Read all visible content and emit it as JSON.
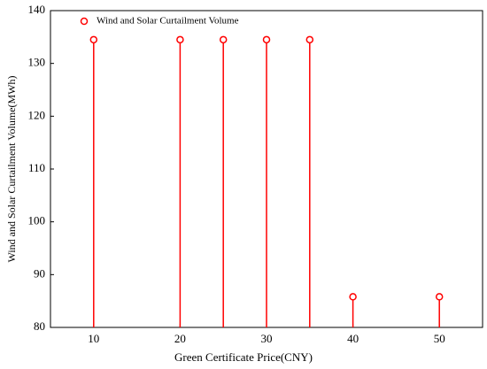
{
  "chart_data": {
    "type": "stem",
    "x": [
      10,
      20,
      25,
      30,
      35,
      40,
      50
    ],
    "series": [
      {
        "name": "Wind and Solar Curtailment Volume",
        "color": "#ff0000",
        "values": [
          134.5,
          134.5,
          134.5,
          134.5,
          134.5,
          85.8,
          85.8
        ]
      }
    ],
    "xlabel": "Green Certificate Price(CNY)",
    "ylabel": "Wind and Solar Curtailment Volume(MWh)",
    "xlim": [
      5,
      55
    ],
    "xticks": [
      10,
      20,
      30,
      40,
      50
    ],
    "ylim": [
      80,
      140
    ],
    "yticks": [
      80,
      90,
      100,
      110,
      120,
      130,
      140
    ],
    "legend": "upper left"
  }
}
